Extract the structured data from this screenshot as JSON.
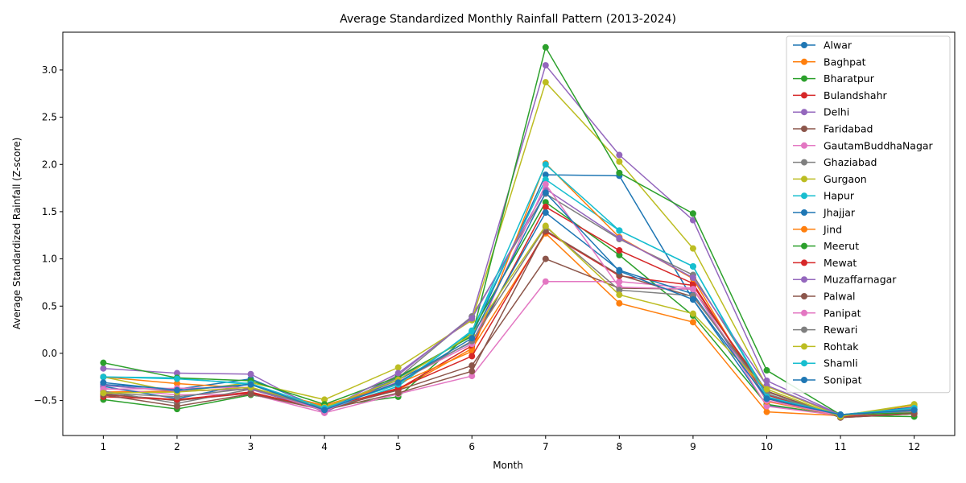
{
  "chart_data": {
    "type": "line",
    "title": "Average Standardized Monthly Rainfall Pattern (2013-2024)",
    "xlabel": "Month",
    "ylabel": "Average Standardized Rainfall (Z-score)",
    "xlim": [
      0.45,
      12.55
    ],
    "ylim": [
      -0.87,
      3.4
    ],
    "x": [
      1,
      2,
      3,
      4,
      5,
      6,
      7,
      8,
      9,
      10,
      11,
      12
    ],
    "xticks": [
      "1",
      "2",
      "3",
      "4",
      "5",
      "6",
      "7",
      "8",
      "9",
      "10",
      "11",
      "12"
    ],
    "yticks": [
      -0.5,
      0.0,
      0.5,
      1.0,
      1.5,
      2.0,
      2.5,
      3.0
    ],
    "yticklabels": [
      "−0.5",
      "0.0",
      "0.5",
      "1.0",
      "1.5",
      "2.0",
      "2.5",
      "3.0"
    ],
    "grid": false,
    "legend_position": "top-right",
    "series": [
      {
        "name": "Alwar",
        "color": "#1f77b4",
        "values": [
          -0.33,
          -0.38,
          -0.27,
          -0.59,
          -0.26,
          0.19,
          1.89,
          1.88,
          0.57,
          -0.55,
          -0.65,
          -0.57
        ]
      },
      {
        "name": "Baghpat",
        "color": "#ff7f0e",
        "values": [
          -0.41,
          -0.4,
          -0.38,
          -0.56,
          -0.39,
          0.05,
          1.27,
          0.53,
          0.33,
          -0.62,
          -0.66,
          -0.55
        ]
      },
      {
        "name": "Bharatpur",
        "color": "#2ca02c",
        "values": [
          -0.49,
          -0.59,
          -0.44,
          -0.57,
          -0.46,
          0.23,
          1.6,
          1.04,
          0.4,
          -0.54,
          -0.66,
          -0.67
        ]
      },
      {
        "name": "Bulandshahr",
        "color": "#d62728",
        "values": [
          -0.44,
          -0.49,
          -0.41,
          -0.6,
          -0.38,
          0.08,
          1.55,
          1.09,
          0.74,
          -0.48,
          -0.67,
          -0.64
        ]
      },
      {
        "name": "Delhi",
        "color": "#9467bd",
        "values": [
          -0.16,
          -0.21,
          -0.22,
          -0.63,
          -0.23,
          0.39,
          3.05,
          2.1,
          1.41,
          -0.29,
          -0.65,
          -0.59
        ]
      },
      {
        "name": "Faridabad",
        "color": "#8c564b",
        "values": [
          -0.43,
          -0.5,
          -0.42,
          -0.59,
          -0.39,
          -0.13,
          1.0,
          0.69,
          0.68,
          -0.4,
          -0.68,
          -0.64
        ]
      },
      {
        "name": "GautamBuddhaNagar",
        "color": "#e377c2",
        "values": [
          -0.37,
          -0.44,
          -0.43,
          -0.63,
          -0.43,
          -0.24,
          0.76,
          0.76,
          0.69,
          -0.56,
          -0.66,
          -0.62
        ]
      },
      {
        "name": "Ghaziabad",
        "color": "#7f7f7f",
        "values": [
          -0.4,
          -0.53,
          -0.38,
          -0.61,
          -0.26,
          0.39,
          1.69,
          1.21,
          0.83,
          -0.41,
          -0.66,
          -0.61
        ]
      },
      {
        "name": "Gurgaon",
        "color": "#bcbd22",
        "values": [
          -0.25,
          -0.41,
          -0.31,
          -0.49,
          -0.15,
          0.35,
          2.87,
          2.03,
          1.11,
          -0.35,
          -0.66,
          -0.54
        ]
      },
      {
        "name": "Hapur",
        "color": "#17becf",
        "values": [
          -0.25,
          -0.26,
          -0.33,
          -0.6,
          -0.35,
          0.24,
          1.84,
          1.3,
          0.92,
          -0.44,
          -0.66,
          -0.6
        ]
      },
      {
        "name": "Jhajjar",
        "color": "#1f77b4",
        "values": [
          -0.35,
          -0.48,
          -0.32,
          -0.61,
          -0.28,
          0.12,
          1.49,
          0.88,
          0.63,
          -0.47,
          -0.66,
          -0.59
        ]
      },
      {
        "name": "Jind",
        "color": "#ff7f0e",
        "values": [
          -0.25,
          -0.32,
          -0.37,
          -0.55,
          -0.32,
          0.02,
          2.01,
          1.23,
          0.79,
          -0.51,
          -0.66,
          -0.59
        ]
      },
      {
        "name": "Meerut",
        "color": "#2ca02c",
        "values": [
          -0.1,
          -0.26,
          -0.29,
          -0.54,
          -0.25,
          0.18,
          3.24,
          1.91,
          1.48,
          -0.18,
          -0.65,
          -0.63
        ]
      },
      {
        "name": "Mewat",
        "color": "#d62728",
        "values": [
          -0.46,
          -0.49,
          -0.42,
          -0.58,
          -0.37,
          -0.03,
          1.29,
          0.82,
          0.72,
          -0.44,
          -0.67,
          -0.64
        ]
      },
      {
        "name": "Muzaffarnagar",
        "color": "#9467bd",
        "values": [
          -0.34,
          -0.4,
          -0.38,
          -0.6,
          -0.21,
          0.37,
          1.74,
          1.22,
          0.8,
          -0.34,
          -0.65,
          -0.6
        ]
      },
      {
        "name": "Palwal",
        "color": "#8c564b",
        "values": [
          -0.44,
          -0.56,
          -0.43,
          -0.6,
          -0.42,
          -0.19,
          1.3,
          0.83,
          0.6,
          -0.4,
          -0.68,
          -0.64
        ]
      },
      {
        "name": "Panipat",
        "color": "#e377c2",
        "values": [
          -0.38,
          -0.37,
          -0.36,
          -0.61,
          -0.3,
          0.1,
          1.79,
          0.7,
          0.68,
          -0.5,
          -0.66,
          -0.59
        ]
      },
      {
        "name": "Rewari",
        "color": "#7f7f7f",
        "values": [
          -0.42,
          -0.46,
          -0.37,
          -0.59,
          -0.31,
          0.13,
          1.34,
          0.67,
          0.61,
          -0.43,
          -0.66,
          -0.59
        ]
      },
      {
        "name": "Rohtak",
        "color": "#bcbd22",
        "values": [
          -0.42,
          -0.41,
          -0.36,
          -0.57,
          -0.28,
          0.2,
          1.35,
          0.62,
          0.42,
          -0.38,
          -0.67,
          -0.54
        ]
      },
      {
        "name": "Shamli",
        "color": "#17becf",
        "values": [
          -0.25,
          -0.27,
          -0.32,
          -0.58,
          -0.33,
          0.23,
          2.0,
          1.3,
          0.92,
          -0.46,
          -0.65,
          -0.58
        ]
      },
      {
        "name": "Sonipat",
        "color": "#1f77b4",
        "values": [
          -0.31,
          -0.39,
          -0.33,
          -0.6,
          -0.31,
          0.16,
          1.7,
          0.87,
          0.57,
          -0.48,
          -0.65,
          -0.6
        ]
      }
    ]
  }
}
